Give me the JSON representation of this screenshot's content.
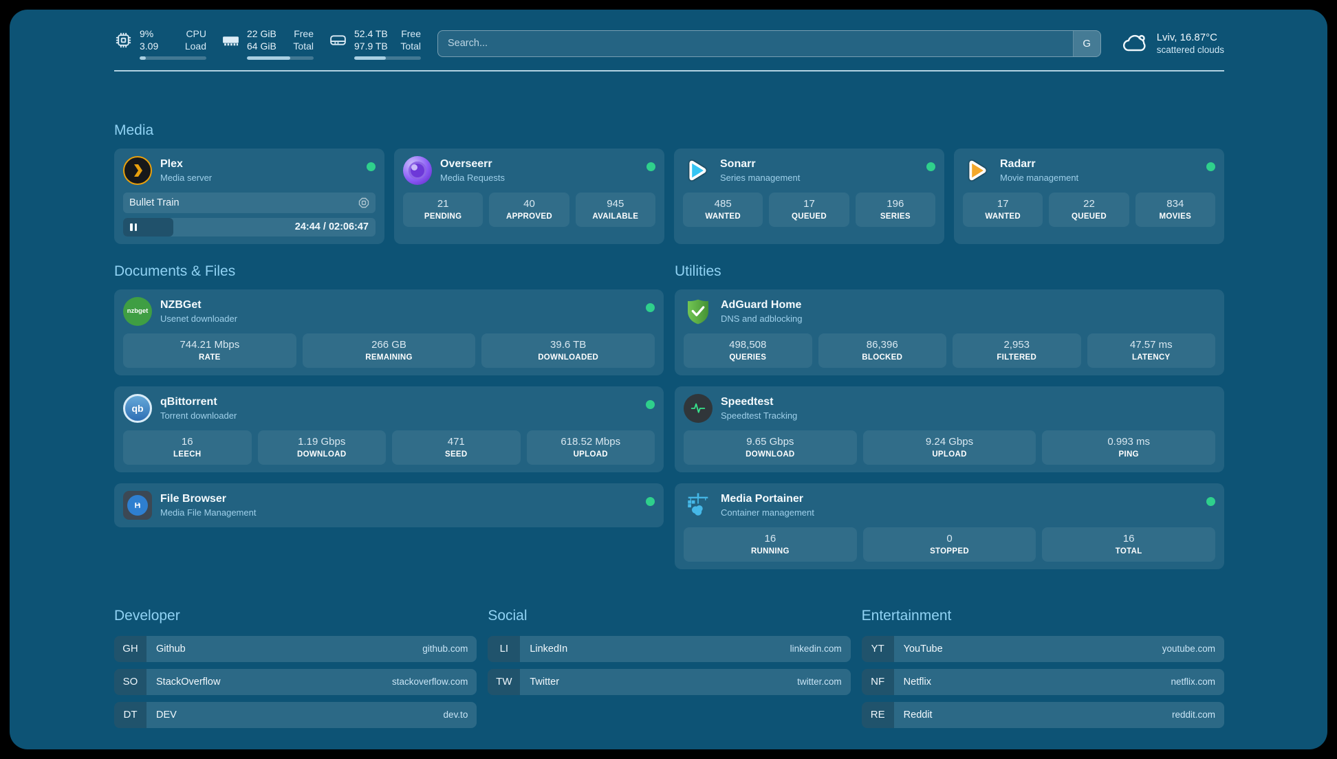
{
  "topbar": {
    "stats": [
      {
        "name": "cpu",
        "value_top": "9%",
        "value_bottom": "3.09",
        "label_top": "CPU",
        "label_bottom": "Load",
        "progress": 9
      },
      {
        "name": "memory",
        "value_top": "22 GiB",
        "value_bottom": "64 GiB",
        "label_top": "Free",
        "label_bottom": "Total",
        "progress": 65
      },
      {
        "name": "storage",
        "value_top": "52.4 TB",
        "value_bottom": "97.9 TB",
        "label_top": "Free",
        "label_bottom": "Total",
        "progress": 47
      }
    ],
    "search": {
      "placeholder": "Search...",
      "button_label": "G"
    },
    "weather": {
      "headline": "Lviv, 16.87°C",
      "condition": "scattered clouds"
    }
  },
  "sections": {
    "media": {
      "title": "Media"
    },
    "documents": {
      "title": "Documents & Files"
    },
    "utilities": {
      "title": "Utilities"
    }
  },
  "apps": {
    "plex": {
      "name": "Plex",
      "subtitle": "Media server",
      "now_playing_title": "Bullet Train",
      "time": "24:44 / 02:06:47",
      "progress": 20
    },
    "overseerr": {
      "name": "Overseerr",
      "subtitle": "Media Requests",
      "stats": [
        {
          "value": "21",
          "label": "PENDING"
        },
        {
          "value": "40",
          "label": "APPROVED"
        },
        {
          "value": "945",
          "label": "AVAILABLE"
        }
      ]
    },
    "sonarr": {
      "name": "Sonarr",
      "subtitle": "Series management",
      "stats": [
        {
          "value": "485",
          "label": "WANTED"
        },
        {
          "value": "17",
          "label": "QUEUED"
        },
        {
          "value": "196",
          "label": "SERIES"
        }
      ]
    },
    "radarr": {
      "name": "Radarr",
      "subtitle": "Movie management",
      "stats": [
        {
          "value": "17",
          "label": "WANTED"
        },
        {
          "value": "22",
          "label": "QUEUED"
        },
        {
          "value": "834",
          "label": "MOVIES"
        }
      ]
    },
    "nzbget": {
      "name": "NZBGet",
      "subtitle": "Usenet downloader",
      "icon_text": "nzbget",
      "stats": [
        {
          "value": "744.21 Mbps",
          "label": "RATE"
        },
        {
          "value": "266 GB",
          "label": "REMAINING"
        },
        {
          "value": "39.6 TB",
          "label": "DOWNLOADED"
        }
      ]
    },
    "qbittorrent": {
      "name": "qBittorrent",
      "subtitle": "Torrent downloader",
      "icon_text": "qb",
      "stats": [
        {
          "value": "16",
          "label": "LEECH"
        },
        {
          "value": "1.19 Gbps",
          "label": "DOWNLOAD"
        },
        {
          "value": "471",
          "label": "SEED"
        },
        {
          "value": "618.52 Mbps",
          "label": "UPLOAD"
        }
      ]
    },
    "filebrowser": {
      "name": "File Browser",
      "subtitle": "Media File Management"
    },
    "adguard": {
      "name": "AdGuard Home",
      "subtitle": "DNS and adblocking",
      "stats": [
        {
          "value": "498,508",
          "label": "QUERIES"
        },
        {
          "value": "86,396",
          "label": "BLOCKED"
        },
        {
          "value": "2,953",
          "label": "FILTERED"
        },
        {
          "value": "47.57 ms",
          "label": "LATENCY"
        }
      ]
    },
    "speedtest": {
      "name": "Speedtest",
      "subtitle": "Speedtest Tracking",
      "stats": [
        {
          "value": "9.65 Gbps",
          "label": "DOWNLOAD"
        },
        {
          "value": "9.24 Gbps",
          "label": "UPLOAD"
        },
        {
          "value": "0.993 ms",
          "label": "PING"
        }
      ]
    },
    "portainer": {
      "name": "Media Portainer",
      "subtitle": "Container management",
      "stats": [
        {
          "value": "16",
          "label": "RUNNING"
        },
        {
          "value": "0",
          "label": "STOPPED"
        },
        {
          "value": "16",
          "label": "TOTAL"
        }
      ]
    }
  },
  "bookmarks": [
    {
      "title": "Developer",
      "links": [
        {
          "abbr": "GH",
          "label": "Github",
          "url": "github.com"
        },
        {
          "abbr": "SO",
          "label": "StackOverflow",
          "url": "stackoverflow.com"
        },
        {
          "abbr": "DT",
          "label": "DEV",
          "url": "dev.to"
        }
      ]
    },
    {
      "title": "Social",
      "links": [
        {
          "abbr": "LI",
          "label": "LinkedIn",
          "url": "linkedin.com"
        },
        {
          "abbr": "TW",
          "label": "Twitter",
          "url": "twitter.com"
        }
      ]
    },
    {
      "title": "Entertainment",
      "links": [
        {
          "abbr": "YT",
          "label": "YouTube",
          "url": "youtube.com"
        },
        {
          "abbr": "NF",
          "label": "Netflix",
          "url": "netflix.com"
        },
        {
          "abbr": "RE",
          "label": "Reddit",
          "url": "reddit.com"
        }
      ]
    }
  ],
  "colors": {
    "status_online": "#2fd08c",
    "section_header": "#90d2f3",
    "panel_bg": "#0d5375"
  }
}
